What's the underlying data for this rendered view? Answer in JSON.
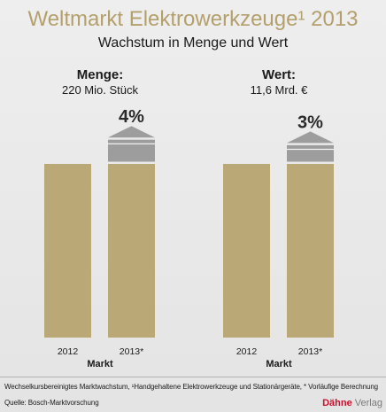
{
  "title": "Weltmarkt Elektrowerkzeuge¹ 2013",
  "subtitle": "Wachstum in Menge und Wert",
  "colors": {
    "title": "#b4a06c",
    "bar": "#bba877",
    "growth": "#9d9d9d",
    "brand_red": "#c8102e"
  },
  "chart_data": [
    {
      "type": "bar",
      "title": "Menge:",
      "total": "220 Mio. Stück",
      "categories": [
        "2012",
        "2013*"
      ],
      "growth": 4,
      "growth_label": "4%",
      "xlabel": "Markt"
    },
    {
      "type": "bar",
      "title": "Wert:",
      "total": "11,6 Mrd. €",
      "categories": [
        "2012",
        "2013*"
      ],
      "growth": 3,
      "growth_label": "3%",
      "xlabel": "Markt"
    }
  ],
  "footer": {
    "note": "Wechselkursbereinigtes Marktwachstum, ¹Handgehaltene Elektrowerkzeuge und Stationärgeräte, * Vorläufige Berechnung",
    "source": "Quelle: Bosch-Marktvorschung",
    "publisher_brand": "Dähne",
    "publisher_suffix": "Verlag"
  }
}
